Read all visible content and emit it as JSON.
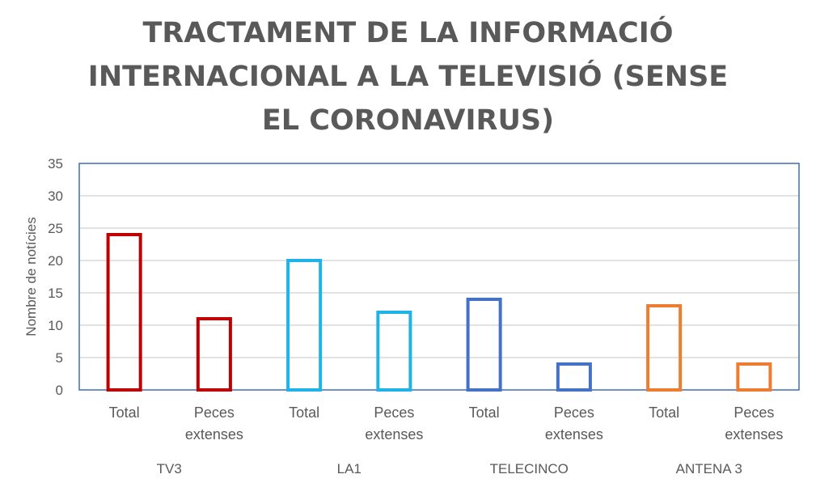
{
  "chart_data": {
    "type": "bar",
    "title_lines": [
      "TRACTAMENT DE LA INFORMACIÓ",
      "INTERNACIONAL A LA TELEVISIÓ (SENSE",
      "EL CORONAVIRUS)"
    ],
    "ylabel": "Nombre de notícies",
    "xlabel": "",
    "ylim": [
      0,
      35
    ],
    "yticks": [
      0,
      5,
      10,
      15,
      20,
      25,
      30,
      35
    ],
    "grid": true,
    "groups": [
      "TV3",
      "LA1",
      "TELECINCO",
      "ANTENA 3"
    ],
    "category_labels": [
      [
        "Total"
      ],
      [
        "Peces",
        "extenses"
      ]
    ],
    "categories": [
      "Total",
      "Peces extenses",
      "Total",
      "Peces extenses",
      "Total",
      "Peces extenses",
      "Total",
      "Peces extenses"
    ],
    "values": [
      24,
      11,
      20,
      12,
      14,
      4,
      13,
      4
    ],
    "colors": [
      "#C00000",
      "#C00000",
      "#1FB4E8",
      "#1FB4E8",
      "#4472C4",
      "#4472C4",
      "#ED7D31",
      "#ED7D31"
    ]
  }
}
